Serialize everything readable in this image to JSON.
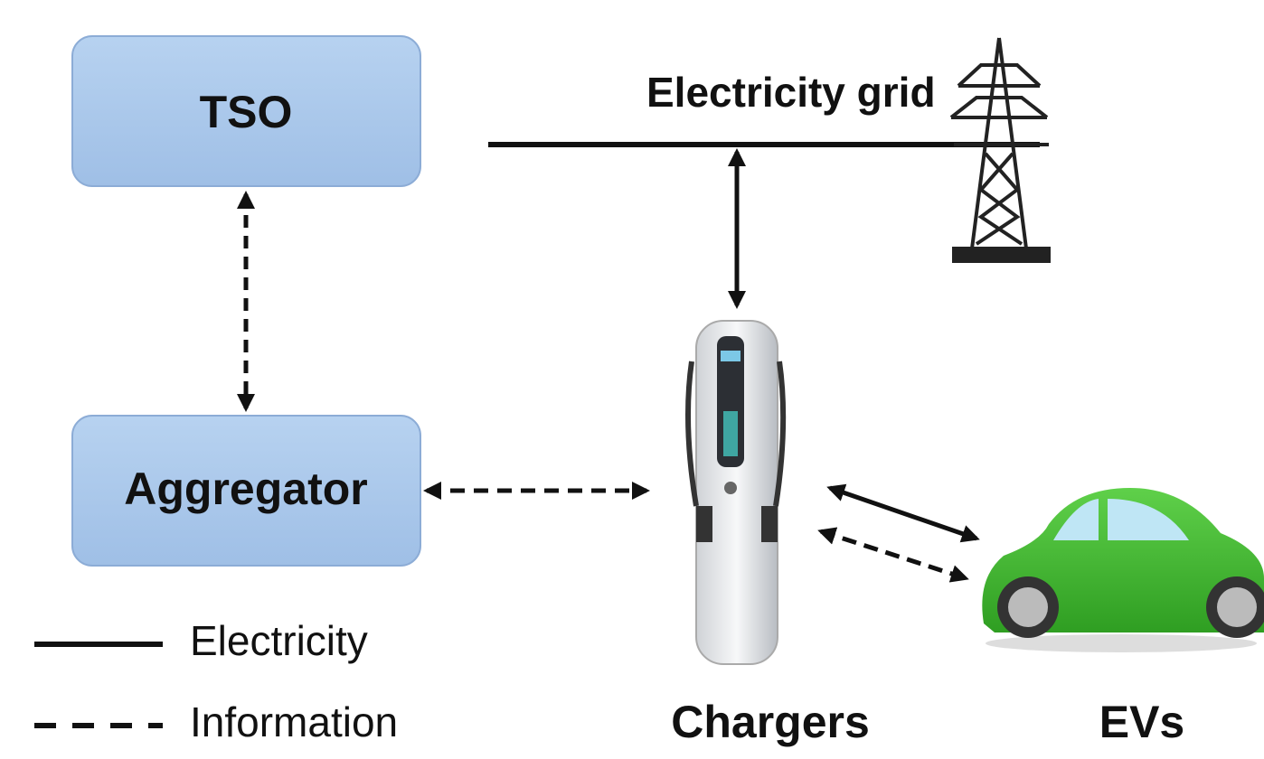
{
  "nodes": [
    {
      "label": "TSO"
    },
    {
      "label": "Aggregator"
    },
    {
      "label": "Electricity grid"
    },
    {
      "label": "Chargers"
    },
    {
      "label": "EVs"
    }
  ],
  "legend": [
    {
      "label": "Electricity"
    },
    {
      "label": "Information"
    }
  ]
}
